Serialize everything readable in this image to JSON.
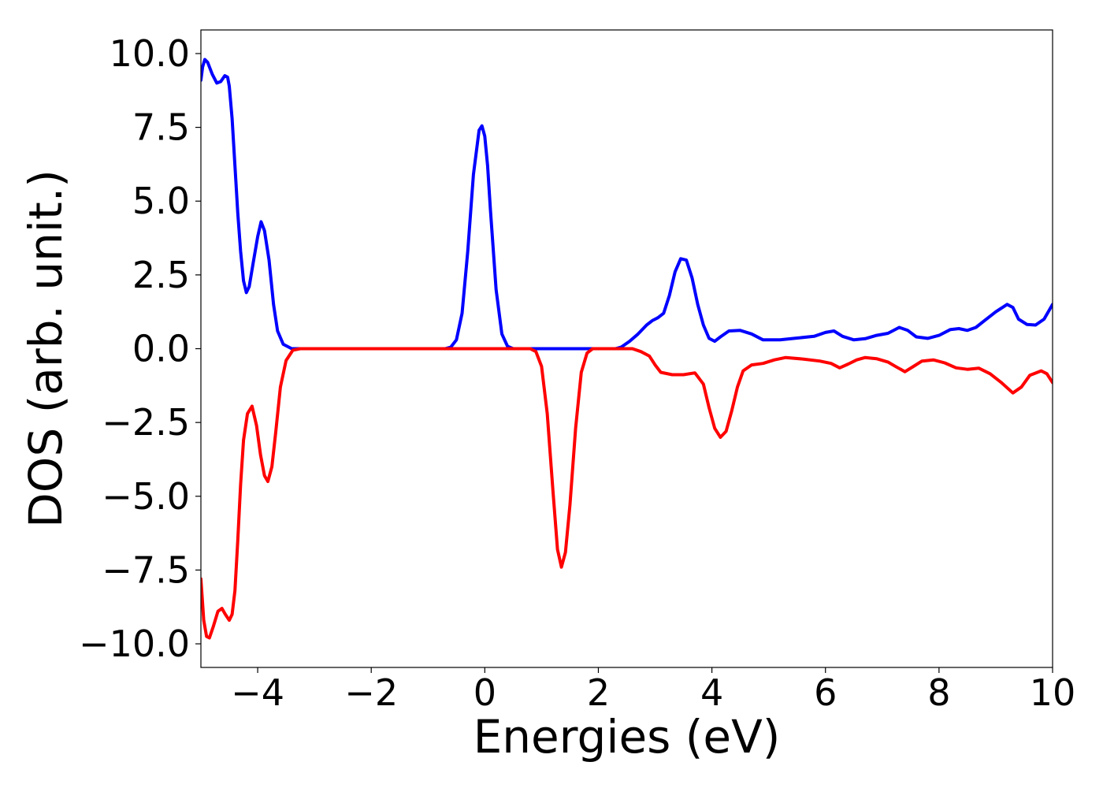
{
  "chart_data": {
    "type": "line",
    "title": "",
    "xlabel": "Energies (eV)",
    "ylabel": "DOS (arb. unit.)",
    "xlim": [
      -5,
      10
    ],
    "ylim": [
      -10.8,
      10.8
    ],
    "xticks": [
      -4,
      -2,
      0,
      2,
      4,
      6,
      8,
      10
    ],
    "xtick_labels": [
      "−4",
      "−2",
      "0",
      "2",
      "4",
      "6",
      "8",
      "10"
    ],
    "yticks": [
      10,
      7.5,
      5,
      2.5,
      0,
      -2.5,
      -5,
      -7.5,
      -10
    ],
    "ytick_labels": [
      "10.0",
      "7.5",
      "5.0",
      "2.5",
      "0.0",
      "−2.5",
      "−5.0",
      "−7.5",
      "−10.0"
    ],
    "grid": false,
    "legend": "none",
    "series": [
      {
        "color": "#0000ff",
        "points": [
          [
            -5.0,
            9.1
          ],
          [
            -4.97,
            9.55
          ],
          [
            -4.93,
            9.8
          ],
          [
            -4.88,
            9.7
          ],
          [
            -4.8,
            9.3
          ],
          [
            -4.72,
            9.0
          ],
          [
            -4.65,
            9.05
          ],
          [
            -4.58,
            9.25
          ],
          [
            -4.53,
            9.2
          ],
          [
            -4.5,
            8.9
          ],
          [
            -4.45,
            7.8
          ],
          [
            -4.4,
            6.2
          ],
          [
            -4.35,
            4.6
          ],
          [
            -4.3,
            3.3
          ],
          [
            -4.25,
            2.3
          ],
          [
            -4.2,
            1.9
          ],
          [
            -4.15,
            2.1
          ],
          [
            -4.08,
            2.9
          ],
          [
            -4.0,
            3.8
          ],
          [
            -3.94,
            4.3
          ],
          [
            -3.88,
            4.0
          ],
          [
            -3.8,
            3.0
          ],
          [
            -3.72,
            1.5
          ],
          [
            -3.65,
            0.6
          ],
          [
            -3.55,
            0.15
          ],
          [
            -3.4,
            0.0
          ],
          [
            -0.7,
            0.0
          ],
          [
            -0.6,
            0.05
          ],
          [
            -0.5,
            0.3
          ],
          [
            -0.4,
            1.2
          ],
          [
            -0.3,
            3.3
          ],
          [
            -0.2,
            5.9
          ],
          [
            -0.1,
            7.4
          ],
          [
            -0.05,
            7.55
          ],
          [
            0.0,
            7.2
          ],
          [
            0.05,
            6.2
          ],
          [
            0.1,
            4.7
          ],
          [
            0.2,
            2.0
          ],
          [
            0.3,
            0.5
          ],
          [
            0.4,
            0.08
          ],
          [
            0.5,
            0.0
          ],
          [
            2.3,
            0.0
          ],
          [
            2.4,
            0.05
          ],
          [
            2.55,
            0.25
          ],
          [
            2.7,
            0.5
          ],
          [
            2.85,
            0.8
          ],
          [
            2.95,
            0.95
          ],
          [
            3.05,
            1.05
          ],
          [
            3.15,
            1.2
          ],
          [
            3.25,
            1.8
          ],
          [
            3.35,
            2.6
          ],
          [
            3.45,
            3.05
          ],
          [
            3.55,
            3.0
          ],
          [
            3.65,
            2.4
          ],
          [
            3.75,
            1.5
          ],
          [
            3.85,
            0.8
          ],
          [
            3.95,
            0.35
          ],
          [
            4.05,
            0.25
          ],
          [
            4.15,
            0.4
          ],
          [
            4.3,
            0.6
          ],
          [
            4.5,
            0.62
          ],
          [
            4.7,
            0.5
          ],
          [
            4.9,
            0.3
          ],
          [
            5.2,
            0.3
          ],
          [
            5.5,
            0.36
          ],
          [
            5.8,
            0.42
          ],
          [
            6.0,
            0.55
          ],
          [
            6.15,
            0.6
          ],
          [
            6.3,
            0.42
          ],
          [
            6.5,
            0.3
          ],
          [
            6.7,
            0.34
          ],
          [
            6.9,
            0.45
          ],
          [
            7.1,
            0.52
          ],
          [
            7.3,
            0.72
          ],
          [
            7.45,
            0.62
          ],
          [
            7.6,
            0.4
          ],
          [
            7.8,
            0.35
          ],
          [
            8.0,
            0.45
          ],
          [
            8.2,
            0.65
          ],
          [
            8.35,
            0.68
          ],
          [
            8.5,
            0.62
          ],
          [
            8.65,
            0.72
          ],
          [
            8.8,
            0.95
          ],
          [
            9.0,
            1.25
          ],
          [
            9.2,
            1.5
          ],
          [
            9.3,
            1.4
          ],
          [
            9.4,
            1.0
          ],
          [
            9.55,
            0.82
          ],
          [
            9.7,
            0.8
          ],
          [
            9.85,
            1.0
          ],
          [
            10.0,
            1.5
          ]
        ]
      },
      {
        "color": "#ff0000",
        "points": [
          [
            -5.0,
            -7.8
          ],
          [
            -4.95,
            -9.2
          ],
          [
            -4.9,
            -9.75
          ],
          [
            -4.85,
            -9.8
          ],
          [
            -4.78,
            -9.4
          ],
          [
            -4.7,
            -8.9
          ],
          [
            -4.63,
            -8.8
          ],
          [
            -4.57,
            -9.0
          ],
          [
            -4.5,
            -9.2
          ],
          [
            -4.45,
            -9.0
          ],
          [
            -4.4,
            -8.2
          ],
          [
            -4.35,
            -6.5
          ],
          [
            -4.3,
            -4.6
          ],
          [
            -4.25,
            -3.1
          ],
          [
            -4.18,
            -2.2
          ],
          [
            -4.1,
            -1.95
          ],
          [
            -4.02,
            -2.6
          ],
          [
            -3.95,
            -3.6
          ],
          [
            -3.88,
            -4.3
          ],
          [
            -3.82,
            -4.5
          ],
          [
            -3.75,
            -4.0
          ],
          [
            -3.68,
            -2.8
          ],
          [
            -3.6,
            -1.3
          ],
          [
            -3.5,
            -0.4
          ],
          [
            -3.38,
            -0.05
          ],
          [
            -3.25,
            0.0
          ],
          [
            0.8,
            0.0
          ],
          [
            0.9,
            -0.1
          ],
          [
            1.0,
            -0.6
          ],
          [
            1.1,
            -2.2
          ],
          [
            1.2,
            -4.8
          ],
          [
            1.28,
            -6.8
          ],
          [
            1.35,
            -7.4
          ],
          [
            1.42,
            -6.9
          ],
          [
            1.5,
            -5.3
          ],
          [
            1.6,
            -2.7
          ],
          [
            1.7,
            -0.8
          ],
          [
            1.8,
            -0.15
          ],
          [
            1.9,
            0.0
          ],
          [
            2.6,
            0.0
          ],
          [
            2.75,
            -0.1
          ],
          [
            2.9,
            -0.25
          ],
          [
            3.0,
            -0.55
          ],
          [
            3.1,
            -0.8
          ],
          [
            3.3,
            -0.88
          ],
          [
            3.5,
            -0.88
          ],
          [
            3.7,
            -0.82
          ],
          [
            3.85,
            -1.2
          ],
          [
            3.95,
            -2.0
          ],
          [
            4.05,
            -2.7
          ],
          [
            4.15,
            -3.0
          ],
          [
            4.25,
            -2.8
          ],
          [
            4.35,
            -2.1
          ],
          [
            4.45,
            -1.3
          ],
          [
            4.55,
            -0.75
          ],
          [
            4.7,
            -0.55
          ],
          [
            4.9,
            -0.5
          ],
          [
            5.1,
            -0.38
          ],
          [
            5.3,
            -0.3
          ],
          [
            5.6,
            -0.35
          ],
          [
            5.9,
            -0.42
          ],
          [
            6.1,
            -0.5
          ],
          [
            6.25,
            -0.65
          ],
          [
            6.4,
            -0.52
          ],
          [
            6.55,
            -0.38
          ],
          [
            6.7,
            -0.3
          ],
          [
            6.9,
            -0.34
          ],
          [
            7.1,
            -0.45
          ],
          [
            7.25,
            -0.62
          ],
          [
            7.4,
            -0.78
          ],
          [
            7.55,
            -0.6
          ],
          [
            7.7,
            -0.42
          ],
          [
            7.9,
            -0.38
          ],
          [
            8.1,
            -0.48
          ],
          [
            8.3,
            -0.65
          ],
          [
            8.5,
            -0.7
          ],
          [
            8.7,
            -0.66
          ],
          [
            8.9,
            -0.85
          ],
          [
            9.1,
            -1.15
          ],
          [
            9.3,
            -1.5
          ],
          [
            9.45,
            -1.3
          ],
          [
            9.6,
            -0.9
          ],
          [
            9.8,
            -0.75
          ],
          [
            9.9,
            -0.85
          ],
          [
            10.0,
            -1.15
          ]
        ]
      }
    ]
  }
}
